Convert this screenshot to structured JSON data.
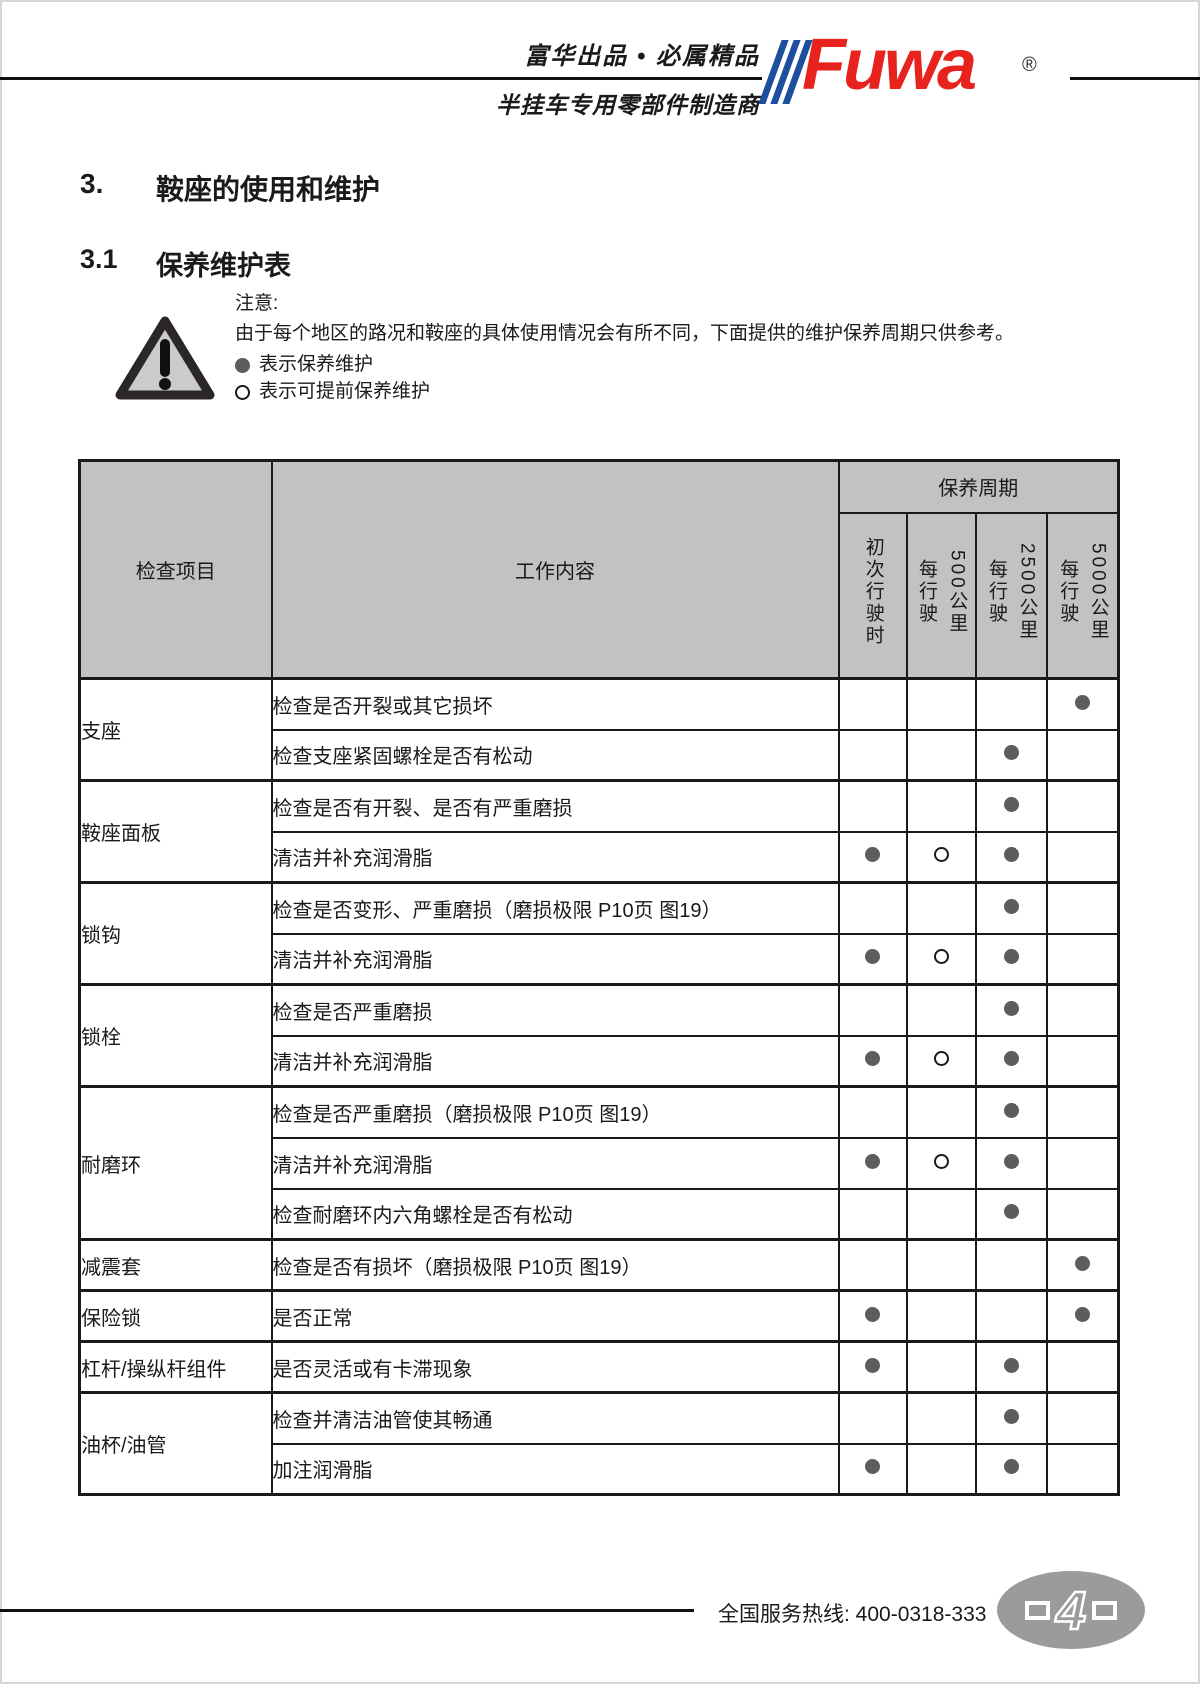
{
  "header": {
    "tagline": "富华出品 • 必属精品",
    "subtitle": "半挂车专用零部件制造商",
    "logo_text": "Fuwa",
    "logo_registered": "®"
  },
  "sections": {
    "h1_num": "3.",
    "h1_title": "鞍座的使用和维护",
    "h2_num": "3.1",
    "h2_title": "保养维护表"
  },
  "notice": {
    "title": "注意:",
    "body": "由于每个地区的路况和鞍座的具体使用情况会有所不同，下面提供的维护保养周期只供参考。",
    "legend_filled": "表示保养维护",
    "legend_open": "表示可提前保养维护"
  },
  "table": {
    "col_item": "检查项目",
    "col_work": "工作内容",
    "col_period": "保养周期",
    "period_cols": [
      {
        "lines": [
          "初次行驶时"
        ]
      },
      {
        "lines": [
          "每行驶",
          "500公里"
        ]
      },
      {
        "lines": [
          "每行驶",
          "2500公里"
        ]
      },
      {
        "lines": [
          "每行驶",
          "5000公里"
        ]
      }
    ],
    "groups": [
      {
        "item": "支座",
        "rows": [
          {
            "work": "检查是否开裂或其它损坏",
            "marks": [
              "",
              "",
              "",
              "filled"
            ]
          },
          {
            "work": "检查支座紧固螺栓是否有松动",
            "marks": [
              "",
              "",
              "filled",
              ""
            ]
          }
        ]
      },
      {
        "item": "鞍座面板",
        "rows": [
          {
            "work": "检查是否有开裂、是否有严重磨损",
            "marks": [
              "",
              "",
              "filled",
              ""
            ]
          },
          {
            "work": "清洁并补充润滑脂",
            "marks": [
              "filled",
              "open",
              "filled",
              ""
            ]
          }
        ]
      },
      {
        "item": "锁钩",
        "rows": [
          {
            "work": "检查是否变形、严重磨损（磨损极限 P10页 图19）",
            "marks": [
              "",
              "",
              "filled",
              ""
            ]
          },
          {
            "work": "清洁并补充润滑脂",
            "marks": [
              "filled",
              "open",
              "filled",
              ""
            ]
          }
        ]
      },
      {
        "item": "锁栓",
        "rows": [
          {
            "work": "检查是否严重磨损",
            "marks": [
              "",
              "",
              "filled",
              ""
            ]
          },
          {
            "work": "清洁并补充润滑脂",
            "marks": [
              "filled",
              "open",
              "filled",
              ""
            ]
          }
        ]
      },
      {
        "item": "耐磨环",
        "rows": [
          {
            "work": "检查是否严重磨损（磨损极限 P10页 图19）",
            "marks": [
              "",
              "",
              "filled",
              ""
            ]
          },
          {
            "work": "清洁并补充润滑脂",
            "marks": [
              "filled",
              "open",
              "filled",
              ""
            ]
          },
          {
            "work": "检查耐磨环内六角螺栓是否有松动",
            "marks": [
              "",
              "",
              "filled",
              ""
            ]
          }
        ]
      },
      {
        "item": "减震套",
        "rows": [
          {
            "work": "检查是否有损坏（磨损极限 P10页 图19）",
            "marks": [
              "",
              "",
              "",
              "filled"
            ]
          }
        ]
      },
      {
        "item": "保险锁",
        "rows": [
          {
            "work": "是否正常",
            "marks": [
              "filled",
              "",
              "",
              "filled"
            ]
          }
        ]
      },
      {
        "item": "杠杆/操纵杆组件",
        "rows": [
          {
            "work": "是否灵活或有卡滞现象",
            "marks": [
              "filled",
              "",
              "filled",
              ""
            ]
          }
        ]
      },
      {
        "item": "油杯/油管",
        "rows": [
          {
            "work": "检查并清洁油管使其畅通",
            "marks": [
              "",
              "",
              "filled",
              ""
            ]
          },
          {
            "work": "加注润滑脂",
            "marks": [
              "filled",
              "",
              "filled",
              ""
            ]
          }
        ]
      }
    ]
  },
  "footer": {
    "hotline": "全国服务热线: 400-0318-333",
    "page_number": "4"
  },
  "colors": {
    "logo_red": "#e8231e",
    "logo_blue": "#1d4f9e",
    "table_header_gray": "#c2c1c3",
    "dot_gray": "#5d5d5f",
    "badge_gray": "#9b9b99",
    "triangle_fill": "#cbcacc"
  }
}
